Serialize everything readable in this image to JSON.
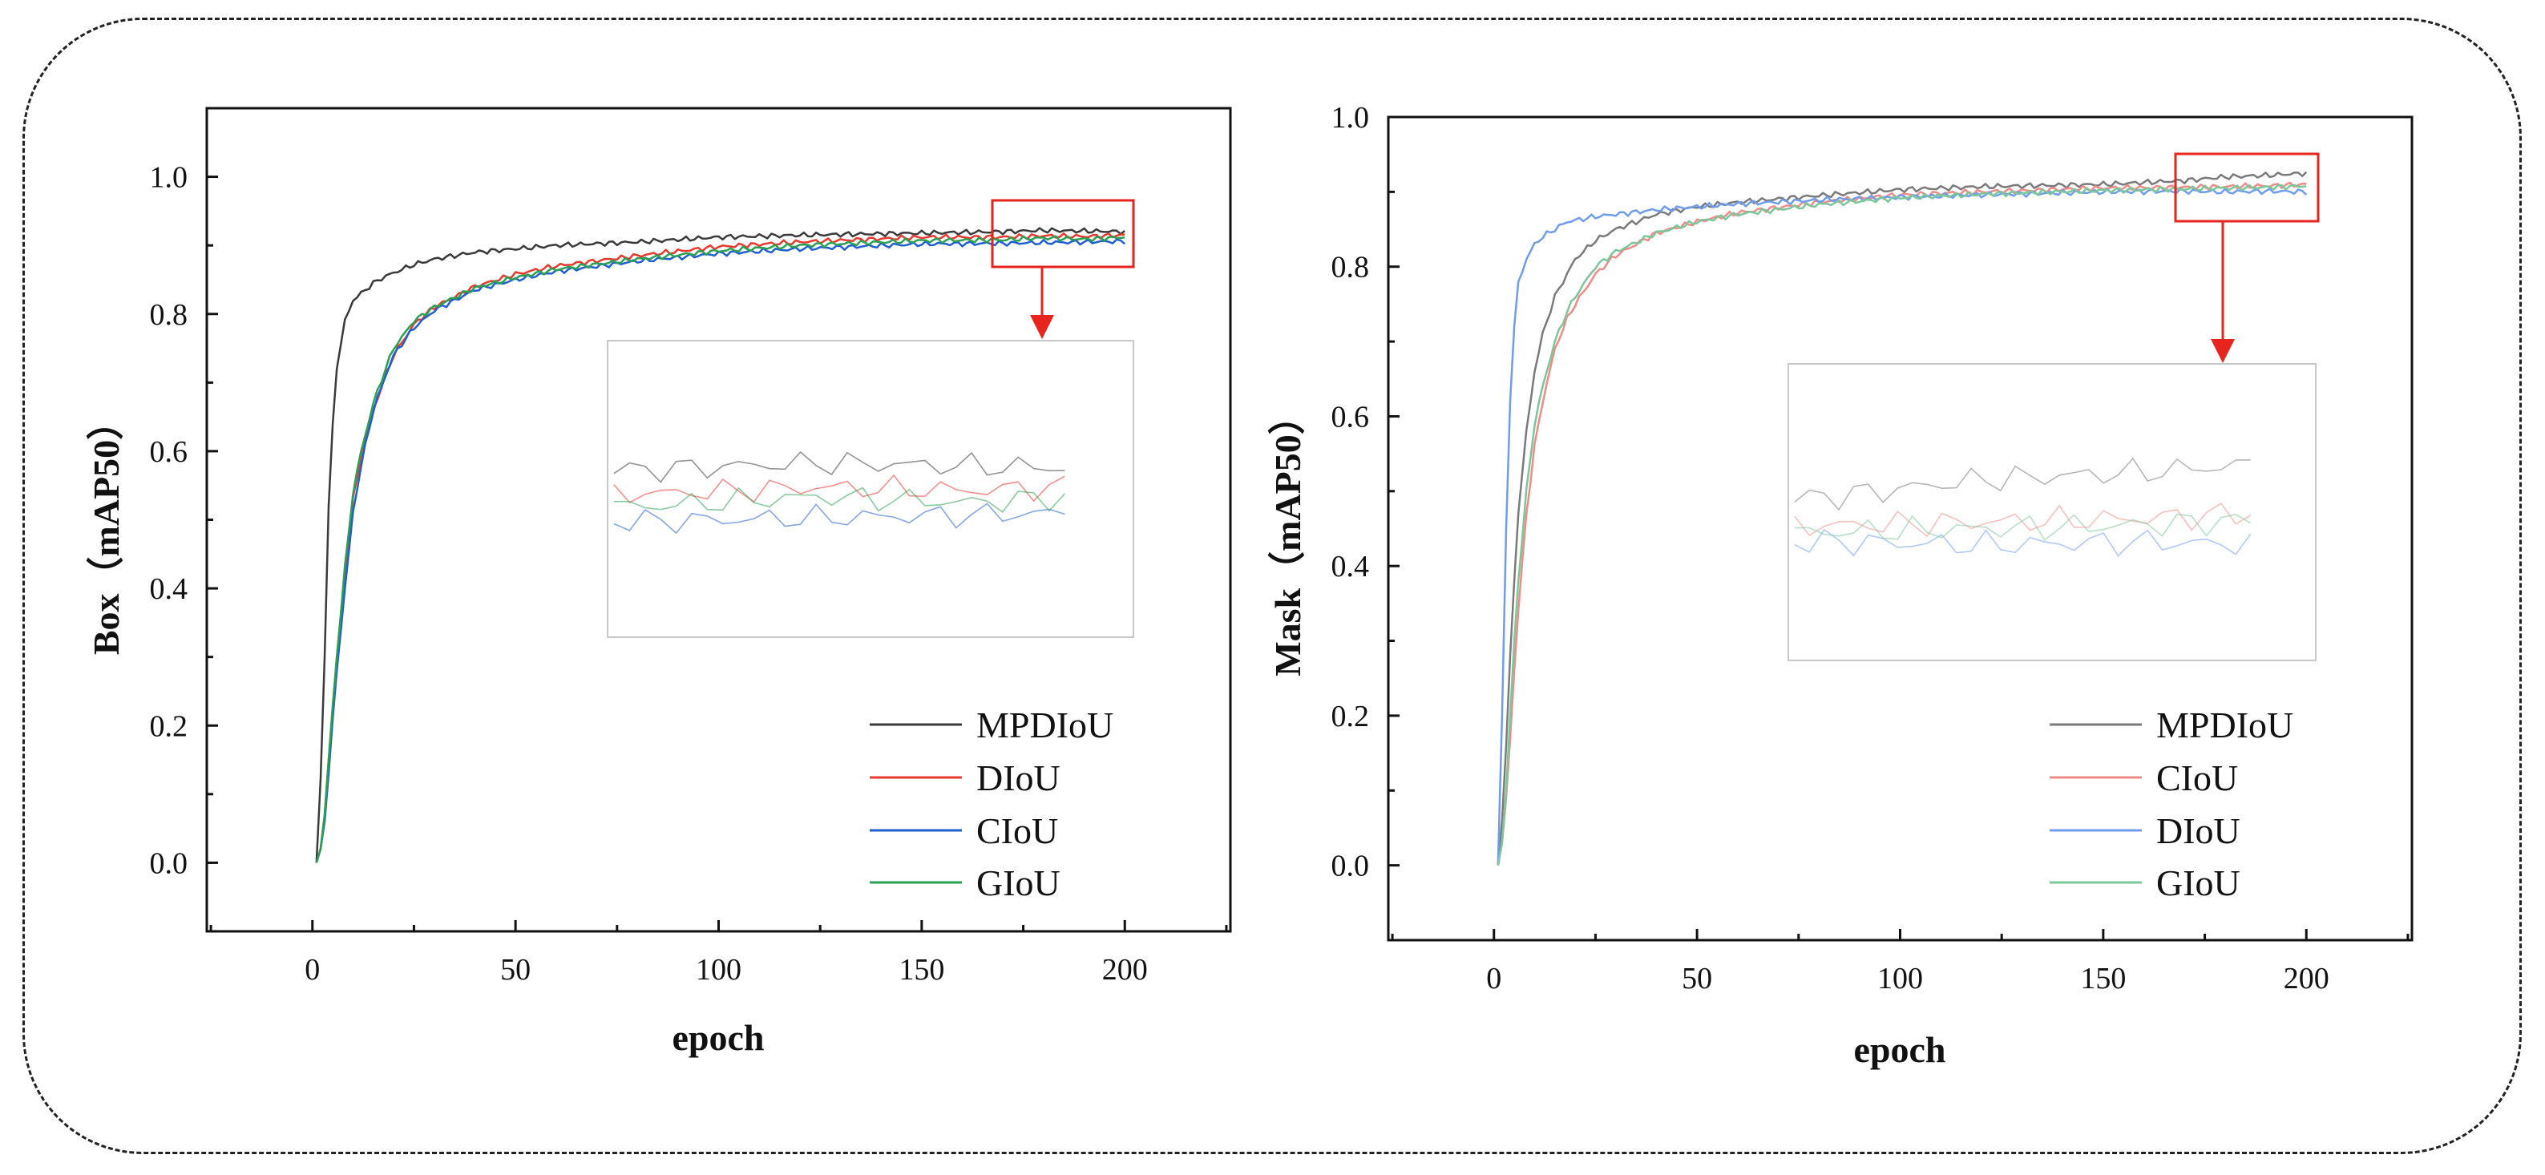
{
  "chart_data": [
    {
      "id": "box",
      "type": "line",
      "xlabel": "epoch",
      "ylabel": "Box（mAP50）",
      "xlim": [
        -26,
        226
      ],
      "ylim": [
        -0.1,
        1.1
      ],
      "xticks": [
        0,
        50,
        100,
        150,
        200
      ],
      "yticks": [
        0.0,
        0.2,
        0.4,
        0.6,
        0.8,
        1.0
      ],
      "x_tick_labels": [
        "0",
        "50",
        "100",
        "150",
        "200"
      ],
      "y_tick_labels": [
        "0.0",
        "0.2",
        "0.4",
        "0.6",
        "0.8",
        "1.0"
      ],
      "legend_position": "bottom-right",
      "annotation": "zoom box around epochs 167-200 with arrow to an inset panel",
      "zoom_region": {
        "x": [
          167,
          200
        ],
        "y": [
          0.865,
          0.962
        ]
      },
      "series": [
        {
          "name": "MPDIoU",
          "color": "#3a3a3a",
          "x": [
            1,
            2,
            3,
            4,
            5,
            6,
            8,
            10,
            12,
            15,
            18,
            20,
            25,
            30,
            40,
            50,
            60,
            80,
            100,
            120,
            150,
            170,
            180,
            190,
            200
          ],
          "y": [
            0.0,
            0.12,
            0.3,
            0.52,
            0.64,
            0.72,
            0.79,
            0.82,
            0.83,
            0.845,
            0.855,
            0.86,
            0.872,
            0.88,
            0.89,
            0.895,
            0.9,
            0.905,
            0.912,
            0.915,
            0.918,
            0.92,
            0.922,
            0.921,
            0.92
          ]
        },
        {
          "name": "DIoU",
          "color": "#e8392f",
          "x": [
            1,
            2,
            3,
            4,
            5,
            6,
            8,
            10,
            12,
            15,
            18,
            20,
            25,
            30,
            40,
            50,
            60,
            80,
            100,
            120,
            150,
            170,
            180,
            190,
            200
          ],
          "y": [
            0.0,
            0.02,
            0.07,
            0.15,
            0.22,
            0.3,
            0.42,
            0.53,
            0.59,
            0.66,
            0.71,
            0.74,
            0.785,
            0.81,
            0.84,
            0.858,
            0.87,
            0.885,
            0.898,
            0.905,
            0.912,
            0.912,
            0.914,
            0.913,
            0.915
          ]
        },
        {
          "name": "CIoU",
          "color": "#1f5fd1",
          "x": [
            1,
            2,
            3,
            4,
            5,
            6,
            8,
            10,
            12,
            15,
            18,
            20,
            25,
            30,
            40,
            50,
            60,
            80,
            100,
            120,
            150,
            170,
            180,
            190,
            200
          ],
          "y": [
            0.0,
            0.02,
            0.06,
            0.13,
            0.21,
            0.28,
            0.4,
            0.51,
            0.58,
            0.66,
            0.71,
            0.74,
            0.78,
            0.805,
            0.835,
            0.85,
            0.862,
            0.877,
            0.888,
            0.895,
            0.902,
            0.903,
            0.904,
            0.905,
            0.906
          ]
        },
        {
          "name": "GIoU",
          "color": "#2aa052",
          "x": [
            1,
            2,
            3,
            4,
            5,
            6,
            8,
            10,
            12,
            15,
            18,
            20,
            25,
            30,
            40,
            50,
            60,
            80,
            100,
            120,
            150,
            170,
            180,
            190,
            200
          ],
          "y": [
            0.0,
            0.02,
            0.07,
            0.15,
            0.23,
            0.3,
            0.43,
            0.54,
            0.6,
            0.67,
            0.72,
            0.75,
            0.79,
            0.81,
            0.838,
            0.853,
            0.865,
            0.88,
            0.892,
            0.9,
            0.907,
            0.908,
            0.911,
            0.909,
            0.912
          ]
        }
      ]
    },
    {
      "id": "mask",
      "type": "line",
      "xlabel": "epoch",
      "ylabel": "Mask（mAP50）",
      "xlim": [
        -26,
        226
      ],
      "ylim": [
        -0.1,
        1.0
      ],
      "xticks": [
        0,
        50,
        100,
        150,
        200
      ],
      "yticks": [
        0.0,
        0.2,
        0.4,
        0.6,
        0.8,
        1.0
      ],
      "x_tick_labels": [
        "0",
        "50",
        "100",
        "150",
        "200"
      ],
      "y_tick_labels": [
        "0.0",
        "0.2",
        "0.4",
        "0.6",
        "0.8",
        "1.0"
      ],
      "legend_position": "bottom-right",
      "annotation": "zoom box around epochs 167-202 with arrow to an inset panel",
      "zoom_region": {
        "x": [
          167,
          202
        ],
        "y": [
          0.865,
          0.955
        ]
      },
      "series": [
        {
          "name": "MPDIoU",
          "color": "#7a7a7a",
          "x": [
            1,
            2,
            3,
            4,
            5,
            6,
            8,
            10,
            12,
            15,
            18,
            20,
            25,
            30,
            40,
            50,
            60,
            80,
            100,
            120,
            150,
            170,
            180,
            190,
            200
          ],
          "y": [
            0.0,
            0.06,
            0.16,
            0.28,
            0.38,
            0.47,
            0.58,
            0.66,
            0.71,
            0.76,
            0.79,
            0.81,
            0.835,
            0.85,
            0.87,
            0.88,
            0.886,
            0.895,
            0.903,
            0.907,
            0.91,
            0.915,
            0.92,
            0.922,
            0.925
          ]
        },
        {
          "name": "CIoU",
          "color": "#f08c86",
          "x": [
            1,
            2,
            3,
            4,
            5,
            6,
            8,
            10,
            12,
            15,
            18,
            20,
            25,
            30,
            40,
            50,
            60,
            80,
            100,
            120,
            150,
            170,
            180,
            190,
            200
          ],
          "y": [
            0.0,
            0.03,
            0.09,
            0.17,
            0.26,
            0.34,
            0.47,
            0.56,
            0.62,
            0.69,
            0.73,
            0.75,
            0.79,
            0.815,
            0.845,
            0.86,
            0.872,
            0.886,
            0.896,
            0.9,
            0.905,
            0.906,
            0.907,
            0.908,
            0.91
          ]
        },
        {
          "name": "DIoU",
          "color": "#6f9cec",
          "x": [
            1,
            2,
            3,
            4,
            5,
            6,
            8,
            10,
            12,
            15,
            18,
            20,
            25,
            30,
            40,
            50,
            60,
            80,
            100,
            120,
            150,
            170,
            180,
            190,
            200
          ],
          "y": [
            0.0,
            0.2,
            0.45,
            0.62,
            0.72,
            0.78,
            0.81,
            0.83,
            0.84,
            0.85,
            0.86,
            0.862,
            0.867,
            0.87,
            0.876,
            0.88,
            0.884,
            0.889,
            0.893,
            0.896,
            0.9,
            0.901,
            0.9,
            0.901,
            0.9
          ]
        },
        {
          "name": "GIoU",
          "color": "#7cc79a",
          "x": [
            1,
            2,
            3,
            4,
            5,
            6,
            8,
            10,
            12,
            15,
            18,
            20,
            25,
            30,
            40,
            50,
            60,
            80,
            100,
            120,
            150,
            170,
            180,
            190,
            200
          ],
          "y": [
            0.0,
            0.03,
            0.1,
            0.2,
            0.3,
            0.38,
            0.5,
            0.59,
            0.64,
            0.7,
            0.74,
            0.76,
            0.8,
            0.82,
            0.845,
            0.86,
            0.87,
            0.883,
            0.892,
            0.897,
            0.902,
            0.904,
            0.905,
            0.906,
            0.908
          ]
        }
      ]
    }
  ]
}
